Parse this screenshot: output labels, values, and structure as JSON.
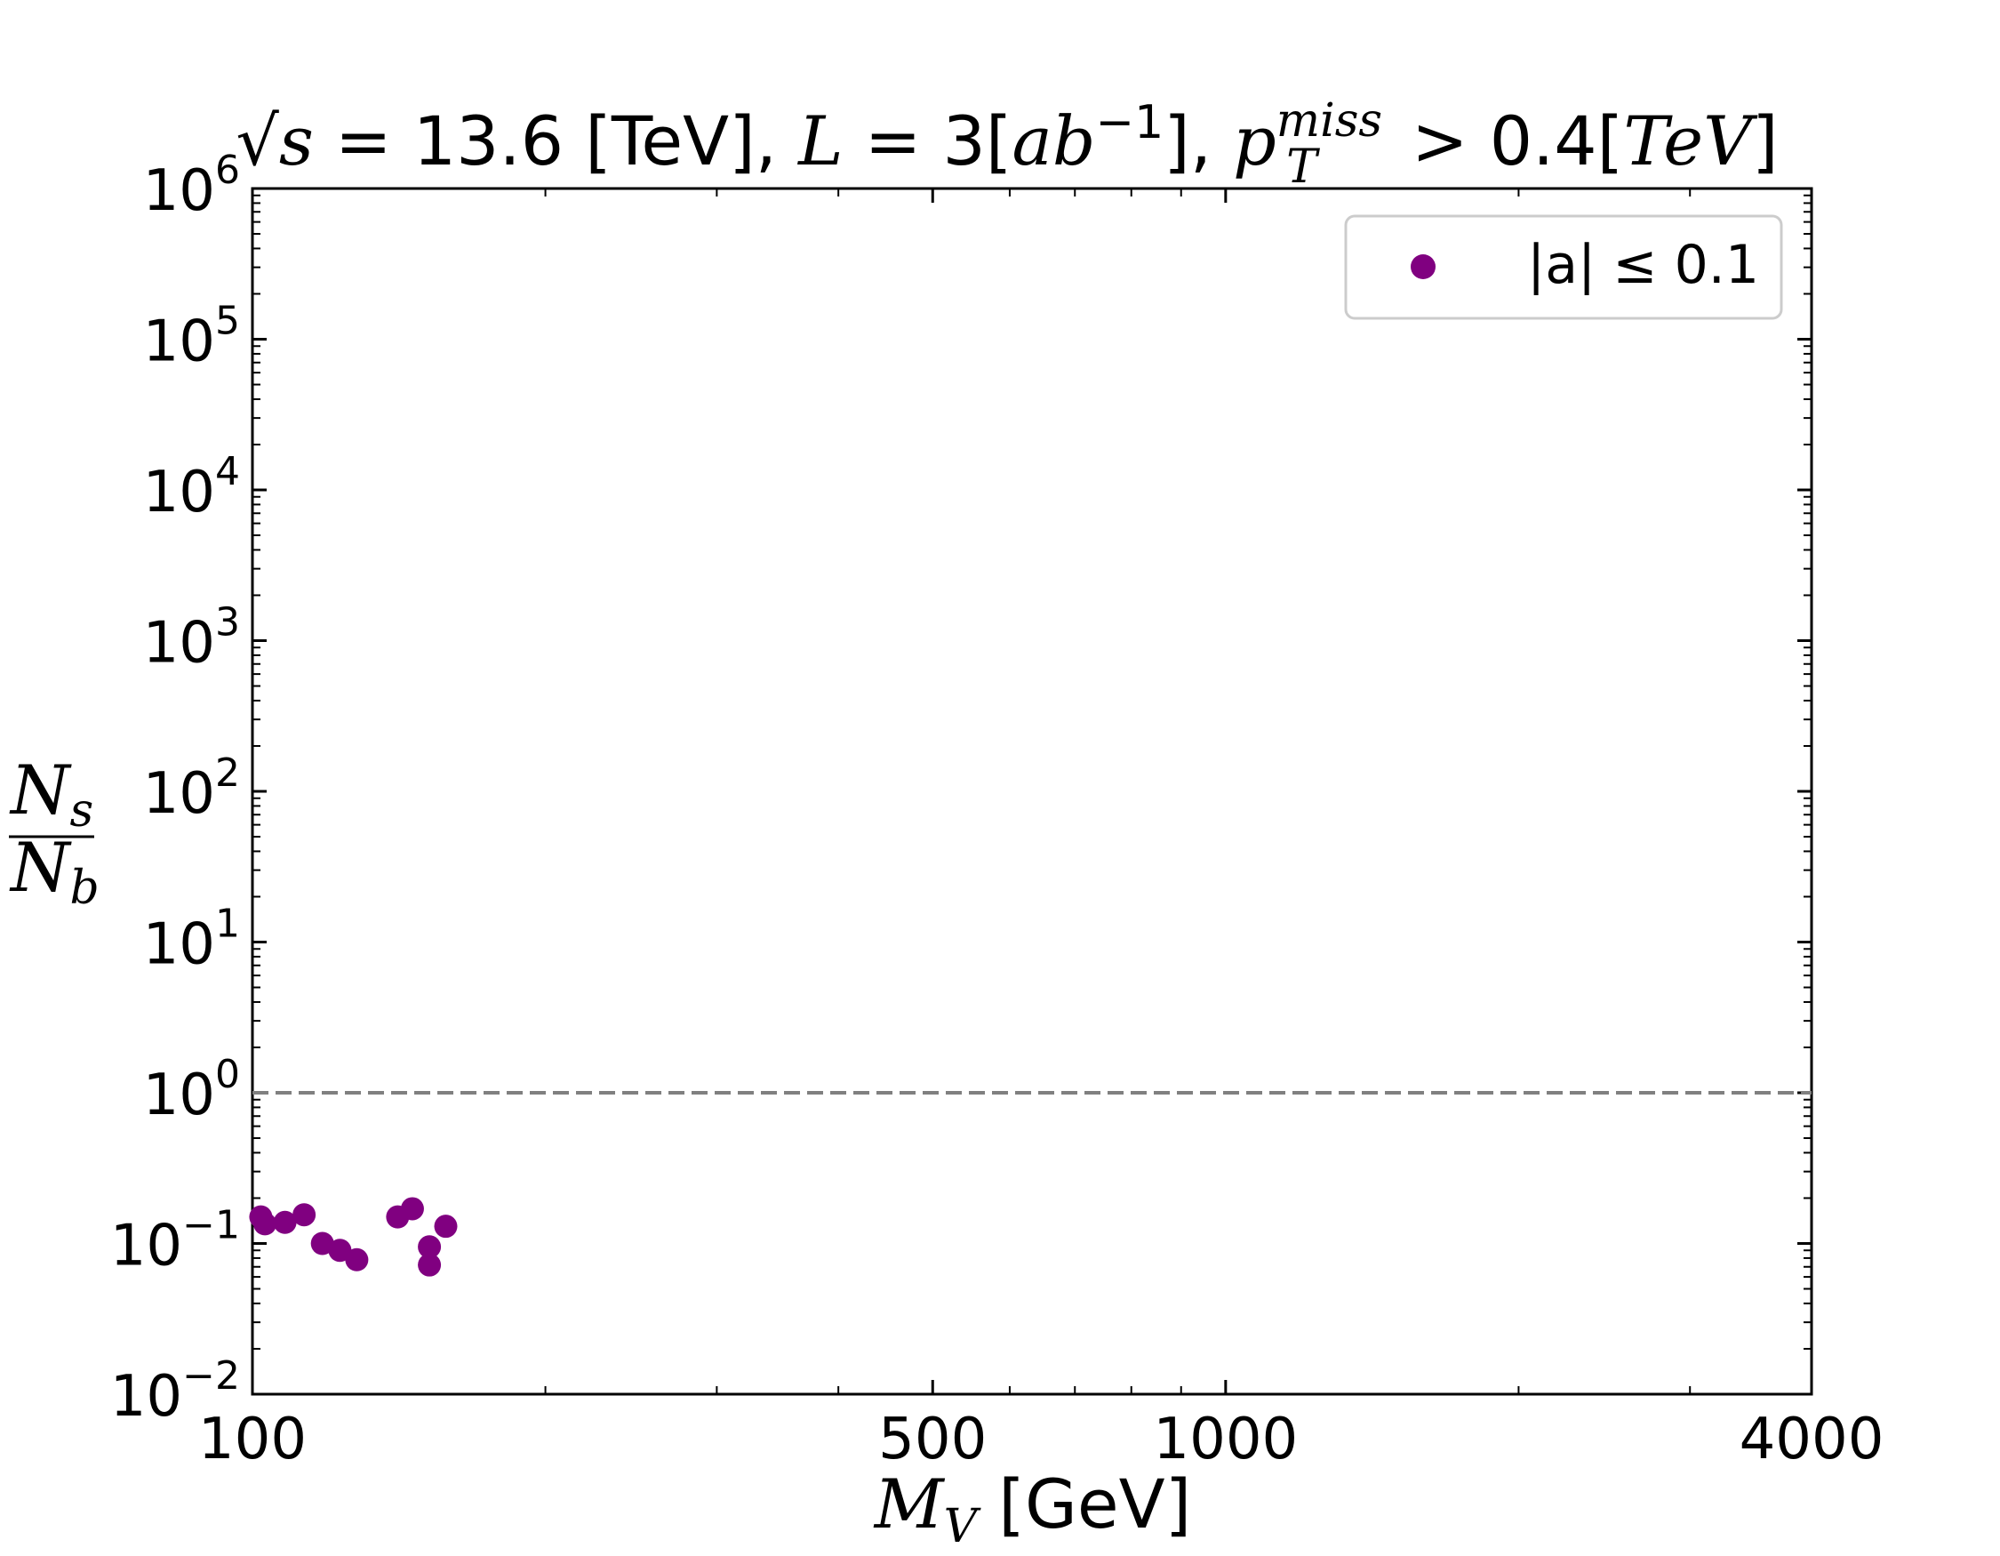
{
  "chart_data": {
    "type": "scatter",
    "title": {
      "sqrt_symbol": "√",
      "s": "s",
      "part1": " = 13.6 [TeV], ",
      "L": "L",
      "part2": " = 3[",
      "ab": "ab",
      "exp": "−1",
      "part3": "], ",
      "p": "p",
      "sub_T": "T",
      "sup_miss": "miss",
      "part4": " > 0.4[",
      "TeV": "TeV",
      "part5": "]"
    },
    "xlabel": {
      "M": "M",
      "sub": "V",
      "rest": " [GeV]"
    },
    "ylabel": {
      "num_N": "N",
      "num_sub": "s",
      "den_N": "N",
      "den_sub": "b"
    },
    "x_scale": "log",
    "y_scale": "log",
    "xlim": [
      100,
      4000
    ],
    "ylim": [
      0.01,
      1000000
    ],
    "x_ticks": [
      {
        "value": 100,
        "label": "100"
      },
      {
        "value": 500,
        "label": "500"
      },
      {
        "value": 1000,
        "label": "1000"
      },
      {
        "value": 4000,
        "label": "4000"
      }
    ],
    "y_ticks": [
      {
        "value": 0.01,
        "base": "10",
        "exp": "−2"
      },
      {
        "value": 0.1,
        "base": "10",
        "exp": "−1"
      },
      {
        "value": 1,
        "base": "10",
        "exp": "0"
      },
      {
        "value": 10,
        "base": "10",
        "exp": "1"
      },
      {
        "value": 100,
        "base": "10",
        "exp": "2"
      },
      {
        "value": 1000,
        "base": "10",
        "exp": "3"
      },
      {
        "value": 10000,
        "base": "10",
        "exp": "4"
      },
      {
        "value": 100000,
        "base": "10",
        "exp": "5"
      },
      {
        "value": 1000000,
        "base": "10",
        "exp": "6"
      }
    ],
    "reference_line": {
      "y": 1,
      "style": "dashed",
      "color": "#808080"
    },
    "legend_position": "top-right",
    "grid": false,
    "series": [
      {
        "name": "|a| ≤ 0.1",
        "color": "#800080",
        "points": [
          {
            "x": 102,
            "y": 0.15
          },
          {
            "x": 103,
            "y": 0.135
          },
          {
            "x": 108,
            "y": 0.138
          },
          {
            "x": 113,
            "y": 0.155
          },
          {
            "x": 118,
            "y": 0.1
          },
          {
            "x": 123,
            "y": 0.09
          },
          {
            "x": 128,
            "y": 0.078
          },
          {
            "x": 141,
            "y": 0.15
          },
          {
            "x": 146,
            "y": 0.17
          },
          {
            "x": 152,
            "y": 0.095
          },
          {
            "x": 152,
            "y": 0.072
          },
          {
            "x": 158,
            "y": 0.13
          }
        ]
      }
    ]
  }
}
